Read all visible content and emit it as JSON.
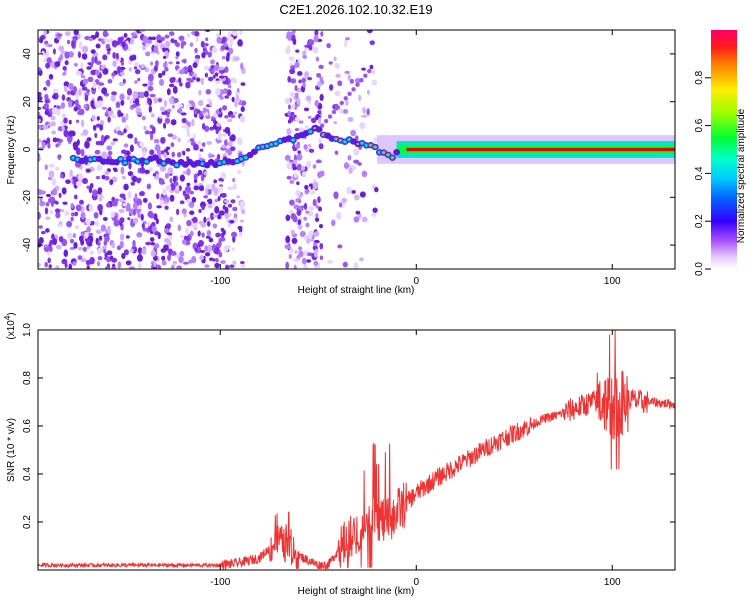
{
  "title": "C2E1.2026.102.10.32.E19",
  "chart_data": [
    {
      "type": "heatmap",
      "panel": "spectrogram",
      "xlabel": "Height of straight line (km)",
      "ylabel": "Frequency (Hz)",
      "xlim": [
        -193,
        132
      ],
      "ylim": [
        -50,
        50
      ],
      "xticks": [
        -100,
        0,
        100
      ],
      "xtick_labels": [
        "-100",
        "0",
        "100"
      ],
      "yticks": [
        -40,
        -20,
        0,
        20,
        40
      ],
      "ytick_labels": [
        "-40",
        "-20",
        "0",
        "20",
        "40"
      ],
      "grid": false,
      "signal_track": {
        "description_points_x": [
          -175,
          -150,
          -135,
          -120,
          -100,
          -90,
          -80,
          -70,
          -60,
          -52,
          -45,
          -35,
          -25,
          -18,
          -12,
          -5,
          0,
          50,
          100,
          132
        ],
        "frequency_hz": [
          -4,
          -5,
          -4,
          -6,
          -6,
          -4,
          0,
          3,
          5,
          9,
          5,
          4,
          2,
          -1,
          -3,
          0,
          0,
          0,
          0,
          1
        ]
      },
      "colorbar": {
        "label": "Normalized spectral amplitude",
        "range": [
          0,
          1
        ],
        "ticks": [
          0.0,
          0.2,
          0.4,
          0.6,
          0.8
        ],
        "tick_labels": [
          "0.0",
          "0.2",
          "0.4",
          "0.6",
          "0.8"
        ],
        "colors": [
          "#ffffff",
          "#d9b3ff",
          "#8a2be2",
          "#0000ff",
          "#00c8ff",
          "#00ffb0",
          "#00ff00",
          "#ffff00",
          "#ff8000",
          "#ff0000",
          "#ff0060"
        ]
      }
    },
    {
      "type": "line",
      "panel": "snr",
      "xlabel": "Height of straight line (km)",
      "ylabel": "SNR (10 * v/v)",
      "scale_label": "(x10",
      "scale_exponent": "4",
      "scale_suffix": ")",
      "xlim": [
        -193,
        132
      ],
      "ylim": [
        0,
        1.0
      ],
      "xticks": [
        -100,
        0,
        100
      ],
      "xtick_labels": [
        "-100",
        "0",
        "100"
      ],
      "yticks": [
        0.2,
        0.4,
        0.6,
        0.8,
        1.0
      ],
      "ytick_labels": [
        "0.2",
        "0.4",
        "0.6",
        "0.8",
        "1.0"
      ],
      "grid": false,
      "series": [
        {
          "name": "SNR",
          "color": "#ee3333",
          "x": [
            -193,
            -160,
            -130,
            -100,
            -90,
            -80,
            -75,
            -70,
            -65,
            -60,
            -55,
            -50,
            -45,
            -40,
            -35,
            -30,
            -25,
            -20,
            -15,
            -10,
            -5,
            0,
            10,
            20,
            30,
            40,
            50,
            60,
            65,
            70,
            80,
            90,
            95,
            100,
            105,
            110,
            115,
            120,
            132
          ],
          "values": [
            0.02,
            0.02,
            0.02,
            0.02,
            0.03,
            0.05,
            0.09,
            0.13,
            0.08,
            0.06,
            0.04,
            0.02,
            0.02,
            0.08,
            0.12,
            0.15,
            0.18,
            0.22,
            0.2,
            0.24,
            0.28,
            0.32,
            0.38,
            0.43,
            0.48,
            0.53,
            0.57,
            0.61,
            0.63,
            0.64,
            0.67,
            0.7,
            0.71,
            0.68,
            0.7,
            0.71,
            0.7,
            0.7,
            0.69
          ]
        }
      ]
    }
  ]
}
